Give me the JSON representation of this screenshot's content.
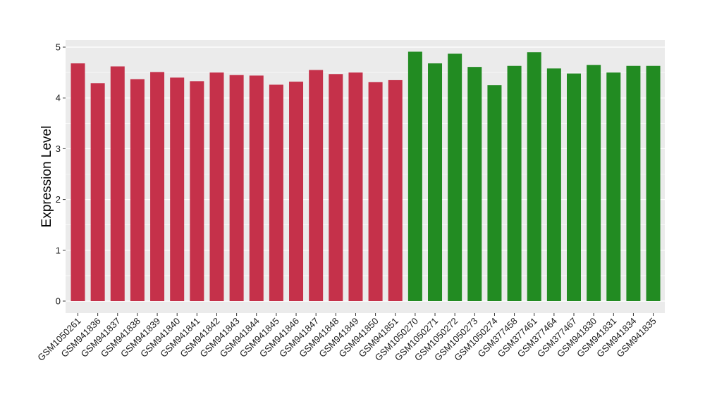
{
  "chart_data": {
    "type": "bar",
    "title": "",
    "xlabel": "",
    "ylabel": "Expression Level",
    "ylim": [
      0,
      5
    ],
    "yticks": [
      0,
      1,
      2,
      3,
      4,
      5
    ],
    "grid": true,
    "legend": "none",
    "colors": {
      "group1": "#c5314a",
      "group2": "#228b22",
      "panel": "#ebebeb",
      "grid": "#ffffff"
    },
    "categories": [
      "GSM1050261",
      "GSM941836",
      "GSM941837",
      "GSM941838",
      "GSM941839",
      "GSM941840",
      "GSM941841",
      "GSM941842",
      "GSM941843",
      "GSM941844",
      "GSM941845",
      "GSM941846",
      "GSM941847",
      "GSM941848",
      "GSM941849",
      "GSM941850",
      "GSM941851",
      "GSM1050270",
      "GSM1050271",
      "GSM1050272",
      "GSM1050273",
      "GSM1050274",
      "GSM377458",
      "GSM377461",
      "GSM377464",
      "GSM377467",
      "GSM941830",
      "GSM941831",
      "GSM941834",
      "GSM941835"
    ],
    "values": [
      4.68,
      4.29,
      4.62,
      4.37,
      4.51,
      4.4,
      4.33,
      4.5,
      4.45,
      4.44,
      4.26,
      4.32,
      4.55,
      4.47,
      4.5,
      4.31,
      4.35,
      4.91,
      4.68,
      4.87,
      4.61,
      4.25,
      4.63,
      4.9,
      4.58,
      4.48,
      4.65,
      4.5,
      4.63,
      4.63
    ],
    "groups": [
      "group1",
      "group1",
      "group1",
      "group1",
      "group1",
      "group1",
      "group1",
      "group1",
      "group1",
      "group1",
      "group1",
      "group1",
      "group1",
      "group1",
      "group1",
      "group1",
      "group1",
      "group2",
      "group2",
      "group2",
      "group2",
      "group2",
      "group2",
      "group2",
      "group2",
      "group2",
      "group2",
      "group2",
      "group2",
      "group2"
    ]
  }
}
